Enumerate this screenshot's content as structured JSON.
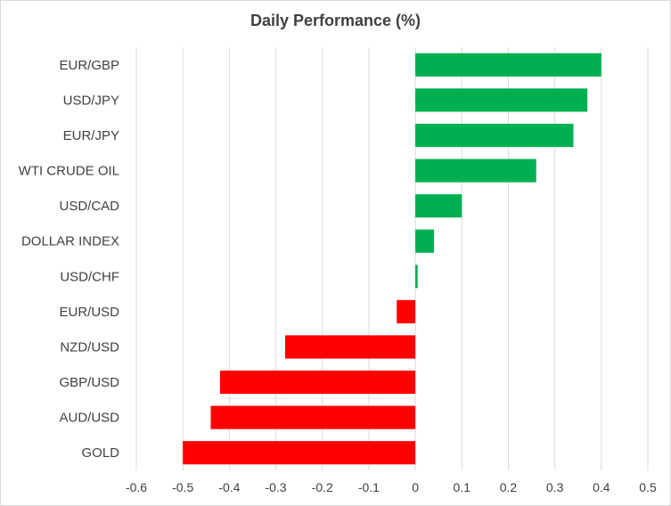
{
  "chart_data": {
    "type": "bar",
    "orientation": "horizontal",
    "title": "Daily Performance  (%)",
    "categories": [
      "EUR/GBP",
      "USD/JPY",
      "EUR/JPY",
      "WTI CRUDE OIL",
      "USD/CAD",
      "DOLLAR INDEX",
      "USD/CHF",
      "EUR/USD",
      "NZD/USD",
      "GBP/USD",
      "AUD/USD",
      "GOLD"
    ],
    "values": [
      0.4,
      0.37,
      0.34,
      0.26,
      0.1,
      0.04,
      0.005,
      -0.04,
      -0.28,
      -0.42,
      -0.44,
      -0.5
    ],
    "xlim": [
      -0.6,
      0.5
    ],
    "xticks": [
      -0.6,
      -0.5,
      -0.4,
      -0.3,
      -0.2,
      -0.1,
      0,
      0.1,
      0.2,
      0.3,
      0.4,
      0.5
    ],
    "xtick_labels": [
      "-0.6",
      "-0.5",
      "-0.4",
      "-0.3",
      "-0.2",
      "-0.1",
      "0",
      "0.1",
      "0.2",
      "0.3",
      "0.4",
      "0.5"
    ],
    "grid": true,
    "legend": "none",
    "colors": {
      "positive": "#00b050",
      "negative": "#ff0000",
      "grid": "#d9d9d9",
      "text": "#404040"
    }
  }
}
